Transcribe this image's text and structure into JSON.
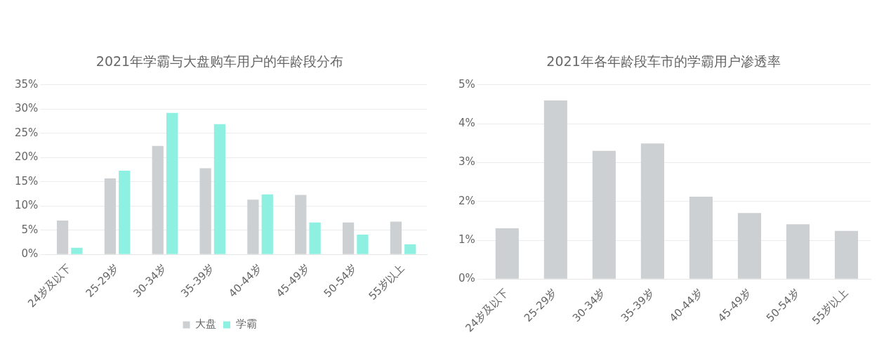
{
  "chart_data": [
    {
      "type": "bar",
      "title": "2021年学霸与大盘购车用户的年龄段分布",
      "categories": [
        "24岁及以下",
        "25-29岁",
        "30-34岁",
        "35-39岁",
        "40-44岁",
        "45-49岁",
        "50-54岁",
        "55岁以上"
      ],
      "series": [
        {
          "name": "大盘",
          "color": "#cdd0d2",
          "values": [
            7.0,
            15.7,
            22.4,
            17.8,
            11.3,
            12.3,
            6.6,
            6.8
          ]
        },
        {
          "name": "学霸",
          "color": "#8ef0e0",
          "values": [
            1.4,
            17.3,
            29.2,
            26.9,
            12.4,
            6.6,
            4.1,
            2.1
          ]
        }
      ],
      "ylim": [
        0,
        35
      ],
      "yticks": [
        {
          "value": 0,
          "label": "0%"
        },
        {
          "value": 5,
          "label": "5%"
        },
        {
          "value": 10,
          "label": "10%"
        },
        {
          "value": 15,
          "label": "15%"
        },
        {
          "value": 20,
          "label": "20%"
        },
        {
          "value": 25,
          "label": "25%"
        },
        {
          "value": 30,
          "label": "30%"
        },
        {
          "value": 35,
          "label": "35%"
        }
      ],
      "grid": "y",
      "legend": "bottom"
    },
    {
      "type": "bar",
      "title": "2021年各年龄段车市的学霸用户渗透率",
      "categories": [
        "24岁及以下",
        "25-29岁",
        "30-34岁",
        "35-39岁",
        "40-44岁",
        "45-49岁",
        "50-54岁",
        "55岁以上"
      ],
      "series": [
        {
          "color": "#cdd0d2",
          "values": [
            1.31,
            4.6,
            3.3,
            3.49,
            2.12,
            1.7,
            1.41,
            1.24
          ]
        }
      ],
      "ylim": [
        0,
        5
      ],
      "yticks": [
        {
          "value": 0,
          "label": "0%"
        },
        {
          "value": 1,
          "label": "1%"
        },
        {
          "value": 2,
          "label": "2%"
        },
        {
          "value": 3,
          "label": "3%"
        },
        {
          "value": 4,
          "label": "4%"
        },
        {
          "value": 5,
          "label": "5%"
        }
      ],
      "grid": "y"
    }
  ]
}
